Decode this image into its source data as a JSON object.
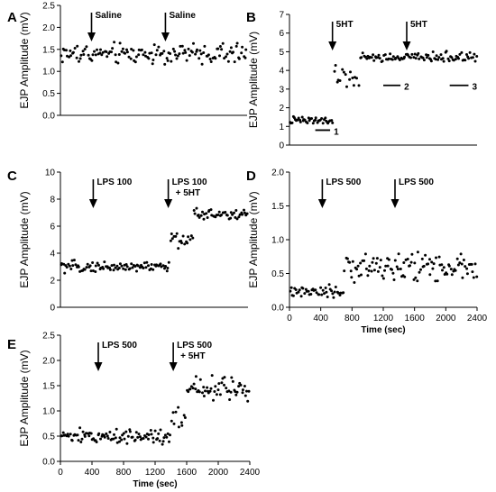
{
  "chart_data": [
    {
      "id": "A",
      "type": "scatter",
      "title": "",
      "xlabel": "",
      "ylabel": "EJP Amplitude (mV)",
      "xlim": [
        0,
        2400
      ],
      "ylim": [
        0.0,
        2.5
      ],
      "yticks": [
        0.0,
        0.5,
        1.0,
        1.5,
        2.0,
        2.5
      ],
      "ytick_labels": [
        "0.0",
        "0.5",
        "1.0",
        "1.5",
        "2.0",
        "2.5"
      ],
      "xticks": [],
      "xtick_labels": [],
      "annotations": [
        {
          "text": "Saline",
          "x": 400,
          "arrow": true
        },
        {
          "text": "Saline",
          "x": 1350,
          "arrow": true
        }
      ],
      "bars": [],
      "segments": [
        {
          "from": 0,
          "to": 2400,
          "mean": 1.4,
          "spread": 0.22,
          "n": 145
        }
      ]
    },
    {
      "id": "B",
      "type": "scatter",
      "title": "",
      "xlabel": "",
      "ylabel": "EJP Amplitude (mV)",
      "xlim": [
        0,
        2400
      ],
      "ylim": [
        0,
        7
      ],
      "yticks": [
        0,
        1,
        2,
        3,
        4,
        5,
        6,
        7
      ],
      "ytick_labels": [
        "0",
        "1",
        "2",
        "3",
        "4",
        "5",
        "6",
        "7"
      ],
      "xticks": [],
      "xtick_labels": [],
      "annotations": [
        {
          "text": "5HT",
          "x": 550,
          "arrow": true
        },
        {
          "text": "5HT",
          "x": 1500,
          "arrow": true
        }
      ],
      "bars": [
        {
          "label": "1",
          "x0": 330,
          "x1": 520,
          "y": 0.8
        },
        {
          "label": "2",
          "x0": 1200,
          "x1": 1420,
          "y": 3.2
        },
        {
          "label": "3",
          "x0": 2050,
          "x1": 2290,
          "y": 3.2
        }
      ],
      "segments": [
        {
          "from": 0,
          "to": 560,
          "mean": 1.3,
          "spread": 0.2,
          "n": 40
        },
        {
          "from": 560,
          "to": 900,
          "mean": 3.6,
          "spread": 0.5,
          "n": 16
        },
        {
          "from": 900,
          "to": 2400,
          "mean": 4.7,
          "spread": 0.25,
          "n": 95
        }
      ]
    },
    {
      "id": "C",
      "type": "scatter",
      "title": "",
      "xlabel": "",
      "ylabel": "EJP Amplitude (mV)",
      "xlim": [
        0,
        2400
      ],
      "ylim": [
        0,
        10
      ],
      "yticks": [
        0,
        2,
        4,
        6,
        8,
        10
      ],
      "ytick_labels": [
        "0",
        "2",
        "4",
        "6",
        "8",
        "10"
      ],
      "xticks": [],
      "xtick_labels": [],
      "annotations": [
        {
          "text": "LPS 100",
          "x": 420,
          "arrow": true
        },
        {
          "text": "LPS 100",
          "text2": "+ 5HT",
          "x": 1380,
          "arrow": true
        }
      ],
      "bars": [],
      "segments": [
        {
          "from": 0,
          "to": 1400,
          "mean": 3.0,
          "spread": 0.35,
          "n": 90
        },
        {
          "from": 1400,
          "to": 1700,
          "mean": 5.0,
          "spread": 0.5,
          "n": 18
        },
        {
          "from": 1700,
          "to": 2400,
          "mean": 6.9,
          "spread": 0.4,
          "n": 45
        }
      ]
    },
    {
      "id": "D",
      "type": "scatter",
      "title": "",
      "xlabel": "Time (sec)",
      "ylabel": "EJP Amplitude (mV)",
      "xlim": [
        0,
        2400
      ],
      "ylim": [
        0.0,
        2.0
      ],
      "yticks": [
        0.0,
        0.5,
        1.0,
        1.5,
        2.0
      ],
      "ytick_labels": [
        "0.0",
        "0.5",
        "1.0",
        "1.5",
        "2.0"
      ],
      "xticks": [
        0,
        400,
        800,
        1200,
        1600,
        2000,
        2400
      ],
      "xtick_labels": [
        "0",
        "400",
        "800",
        "1200",
        "1600",
        "2000",
        "2400"
      ],
      "annotations": [
        {
          "text": "LPS 500",
          "x": 420,
          "arrow": true
        },
        {
          "text": "LPS 500",
          "x": 1350,
          "arrow": true
        }
      ],
      "bars": [],
      "segments": [
        {
          "from": 0,
          "to": 700,
          "mean": 0.22,
          "spread": 0.08,
          "n": 45
        },
        {
          "from": 700,
          "to": 2400,
          "mean": 0.6,
          "spread": 0.18,
          "n": 110
        }
      ]
    },
    {
      "id": "E",
      "type": "scatter",
      "title": "",
      "xlabel": "Time (sec)",
      "ylabel": "EJP Amplitude (mV)",
      "xlim": [
        0,
        2400
      ],
      "ylim": [
        0.0,
        2.5
      ],
      "yticks": [
        0.0,
        0.5,
        1.0,
        1.5,
        2.0,
        2.5
      ],
      "ytick_labels": [
        "0.0",
        "0.5",
        "1.0",
        "1.5",
        "2.0",
        "2.5"
      ],
      "xticks": [
        0,
        400,
        800,
        1200,
        1600,
        2000,
        2400
      ],
      "xtick_labels": [
        "0",
        "400",
        "800",
        "1200",
        "1600",
        "2000",
        "2400"
      ],
      "annotations": [
        {
          "text": "LPS 500",
          "x": 480,
          "arrow": true
        },
        {
          "text": "LPS 500",
          "text2": "+ 5HT",
          "x": 1430,
          "arrow": true
        }
      ],
      "bars": [],
      "segments": [
        {
          "from": 0,
          "to": 1400,
          "mean": 0.5,
          "spread": 0.13,
          "n": 95
        },
        {
          "from": 1400,
          "to": 1600,
          "mean": 0.9,
          "spread": 0.25,
          "n": 10
        },
        {
          "from": 1600,
          "to": 2400,
          "mean": 1.45,
          "spread": 0.22,
          "n": 55
        }
      ]
    }
  ]
}
